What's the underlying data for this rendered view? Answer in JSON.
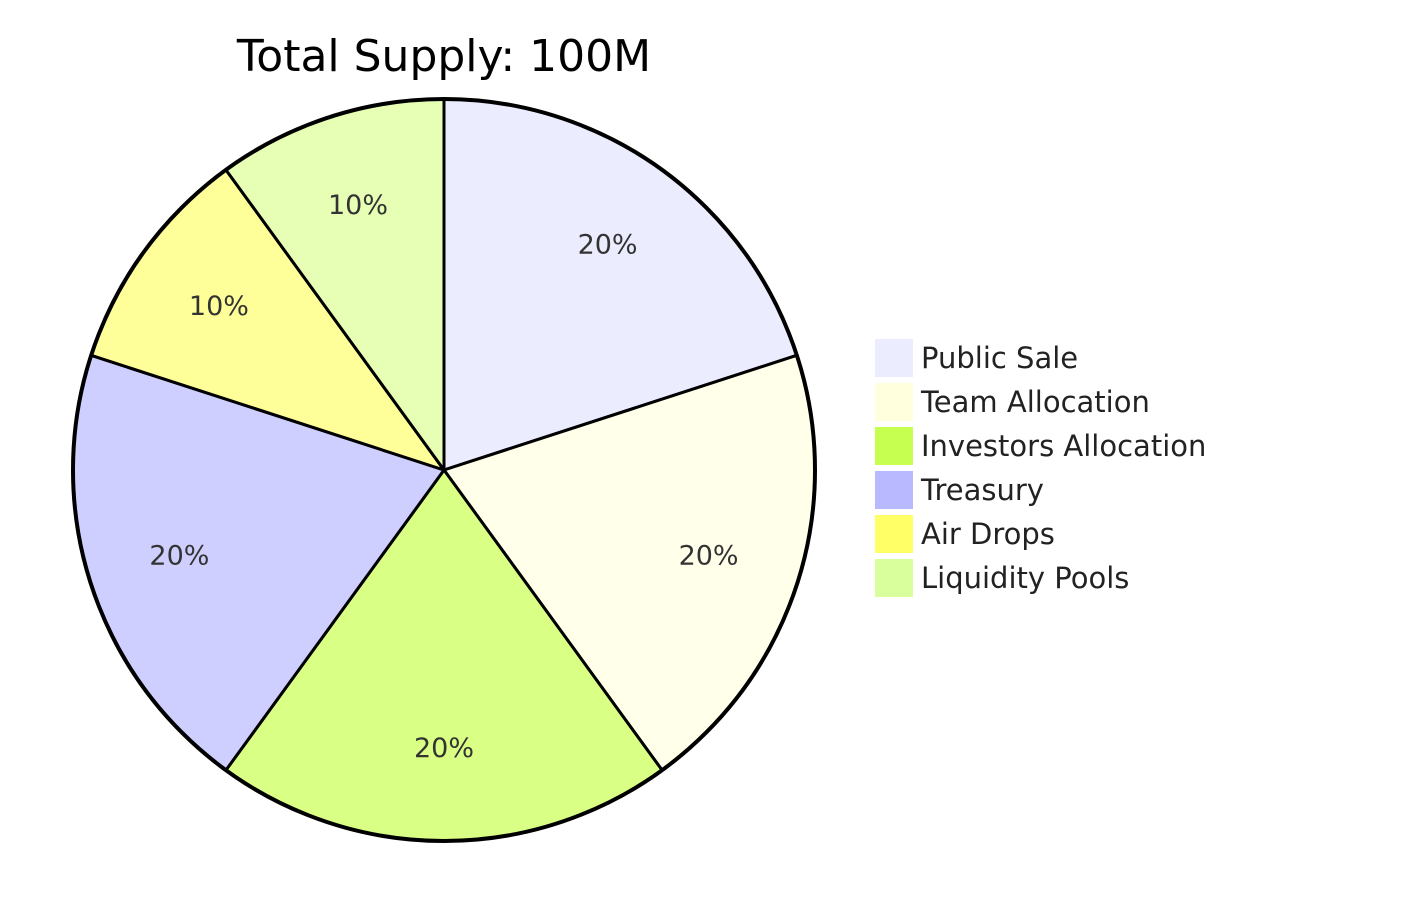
{
  "chart_data": {
    "type": "pie",
    "title": "Total Supply: 100M",
    "start_angle": "12 o'clock, clockwise",
    "legend_position": "right",
    "slices": [
      {
        "label": "Public Sale",
        "value": 20,
        "display": "20%",
        "color": "#ECECFF",
        "legend_color": "#ECECFF"
      },
      {
        "label": "Team Allocation",
        "value": 20,
        "display": "20%",
        "color": "#FFFFEA",
        "legend_color": "#FFFFDE"
      },
      {
        "label": "Investors Allocation",
        "value": 20,
        "display": "20%",
        "color": "#D9FF85",
        "legend_color": "#C6FF4F"
      },
      {
        "label": "Treasury",
        "value": 20,
        "display": "20%",
        "color": "#CFCFFF",
        "legend_color": "#B9B9FF"
      },
      {
        "label": "Air Drops",
        "value": 10,
        "display": "10%",
        "color": "#FFFF99",
        "legend_color": "#FFFF66"
      },
      {
        "label": "Liquidity Pools",
        "value": 10,
        "display": "10%",
        "color": "#E6FFB5",
        "legend_color": "#D9FF9C"
      }
    ]
  }
}
